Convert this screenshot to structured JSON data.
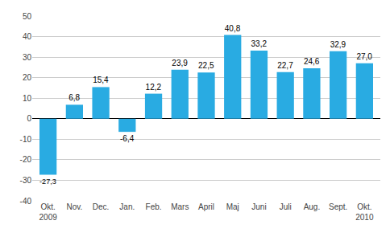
{
  "chart_data": {
    "type": "bar",
    "categories": [
      "Okt.\n2009",
      "Nov.",
      "Dec.",
      "Jan.",
      "Feb.",
      "Mars",
      "April",
      "Maj",
      "Juni",
      "Juli",
      "Aug.",
      "Sept.",
      "Okt.\n2010"
    ],
    "values": [
      -27.3,
      6.8,
      15.4,
      -6.4,
      12.2,
      23.9,
      22.5,
      40.8,
      33.2,
      22.7,
      24.6,
      32.9,
      27.0
    ],
    "value_labels": [
      "-27,3",
      "6,8",
      "15,4",
      "-6,4",
      "12,2",
      "23,9",
      "22,5",
      "40,8",
      "33,2",
      "22,7",
      "24,6",
      "32,9",
      "27,0"
    ],
    "data_labels": true,
    "color": "#29abe2",
    "ylim": [
      -40,
      50
    ],
    "yticks": [
      -40,
      -30,
      -20,
      -10,
      0,
      10,
      20,
      30,
      40,
      50
    ],
    "grid": true
  }
}
